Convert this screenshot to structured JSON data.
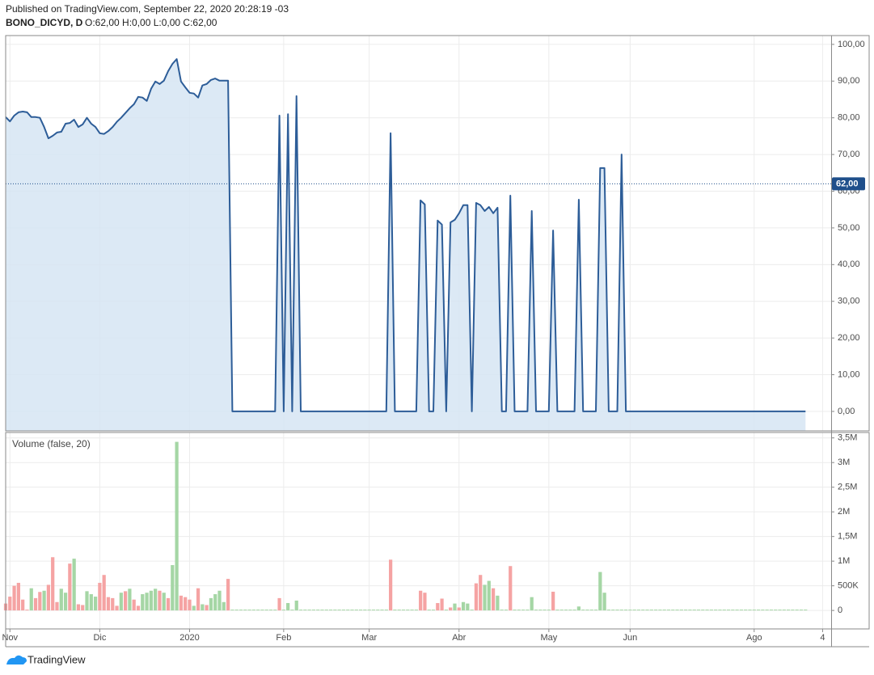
{
  "header": {
    "published": "Published on TradingView.com, September 22, 2020 20:28:19 -03",
    "symbol": "BONO_DICYD, D",
    "ohlc": "O:62,00 H:0,00 L:0,00 C:62,00"
  },
  "chart_data": [
    {
      "type": "area",
      "color": "#2d5d98",
      "fill_color": "#d6e5f3",
      "values": [
        80.2,
        79,
        80.6,
        81.5,
        81.7,
        81.5,
        80.2,
        80.2,
        80,
        77.5,
        74.4,
        75.1,
        76,
        76.2,
        78.4,
        78.6,
        79.5,
        77.5,
        78.2,
        80,
        78.4,
        77.5,
        75.8,
        75.6,
        76.4,
        77.5,
        78.9,
        80,
        81.3,
        82.6,
        83.7,
        85.7,
        85.5,
        84.6,
        87.9,
        89.9,
        89.2,
        90.1,
        92.7,
        94.7,
        96,
        89.9,
        88.3,
        86.8,
        86.6,
        85.5,
        88.8,
        89.2,
        90.3,
        90.7,
        90.1,
        90.1,
        90.1,
        0,
        0,
        0,
        0,
        0,
        0,
        0,
        0,
        0,
        0,
        0,
        80.6,
        0,
        81,
        0,
        85.9,
        0,
        0,
        0,
        0,
        0,
        0,
        0,
        0,
        0,
        0,
        0,
        0,
        0,
        0,
        0,
        0,
        0,
        0,
        0,
        0,
        0,
        75.8,
        0,
        0,
        0,
        0,
        0,
        0,
        57.5,
        56.4,
        0,
        0,
        52,
        50.9,
        0,
        51.5,
        52.2,
        54,
        56.2,
        56.2,
        0,
        56.8,
        56.2,
        54.6,
        55.7,
        54,
        55.5,
        0,
        0,
        58.8,
        0,
        0,
        0,
        0,
        54.6,
        0,
        0,
        0,
        0,
        49.3,
        0,
        0,
        0,
        0,
        0,
        57.7,
        0,
        0,
        0,
        0,
        66.3,
        66.3,
        0,
        0,
        0,
        70,
        0,
        0,
        0,
        0,
        0,
        0,
        0,
        0,
        0,
        0,
        0,
        0,
        0,
        0,
        0,
        0,
        0,
        0,
        0,
        0,
        0,
        0,
        0,
        0,
        0,
        0,
        0,
        0,
        0,
        0,
        0,
        0,
        0,
        0,
        0,
        0,
        0,
        0,
        0,
        0,
        0,
        0,
        0
      ],
      "ylim": [
        -5.3,
        102.4
      ],
      "yticks": [
        {
          "value": 0,
          "label": "0,00"
        },
        {
          "value": 10,
          "label": "10,00"
        },
        {
          "value": 20,
          "label": "20,00"
        },
        {
          "value": 30,
          "label": "30,00"
        },
        {
          "value": 40,
          "label": "40,00"
        },
        {
          "value": 50,
          "label": "50,00"
        },
        {
          "value": 60,
          "label": "60,00"
        },
        {
          "value": 70,
          "label": "70,00"
        },
        {
          "value": 80,
          "label": "80,00"
        },
        {
          "value": 90,
          "label": "90,00"
        },
        {
          "value": 100,
          "label": "100,00"
        }
      ],
      "last_price": {
        "value": 62,
        "label": "62,00"
      },
      "last_color": "#1f4f8b",
      "grid": true
    },
    {
      "type": "bar",
      "title": "Volume (false, 20)",
      "values": [
        140000,
        280000,
        500000,
        560000,
        220000,
        16000,
        450000,
        250000,
        375000,
        400000,
        520000,
        1080000,
        170000,
        440000,
        360000,
        950000,
        1050000,
        125000,
        110000,
        390000,
        330000,
        280000,
        560000,
        720000,
        270000,
        250000,
        94000,
        360000,
        390000,
        440000,
        220000,
        94000,
        330000,
        360000,
        400000,
        440000,
        400000,
        360000,
        250000,
        920000,
        3420000,
        300000,
        270000,
        220000,
        94000,
        450000,
        125000,
        110000,
        250000,
        330000,
        400000,
        170000,
        640000,
        0,
        0,
        0,
        0,
        0,
        0,
        0,
        0,
        0,
        0,
        0,
        250000,
        0,
        150000,
        0,
        200000,
        0,
        0,
        0,
        0,
        0,
        0,
        0,
        0,
        0,
        0,
        0,
        0,
        0,
        0,
        0,
        0,
        0,
        0,
        0,
        0,
        0,
        1030000,
        0,
        0,
        0,
        0,
        0,
        0,
        400000,
        360000,
        0,
        0,
        150000,
        240000,
        0,
        60000,
        140000,
        60000,
        170000,
        140000,
        0,
        550000,
        720000,
        520000,
        600000,
        450000,
        300000,
        0,
        0,
        900000,
        0,
        0,
        0,
        0,
        270000,
        0,
        0,
        0,
        0,
        380000,
        0,
        0,
        0,
        0,
        0,
        80000,
        0,
        0,
        0,
        0,
        780000,
        360000,
        0,
        0,
        0,
        0,
        0,
        0,
        0,
        0,
        0,
        0,
        0,
        0,
        0,
        0,
        0,
        0,
        0,
        0,
        0,
        0,
        0,
        0,
        0,
        0,
        0,
        0,
        0,
        0,
        0,
        0,
        0,
        0,
        0,
        0,
        0,
        0,
        0,
        0,
        0,
        0,
        0,
        0,
        0,
        0,
        0,
        0,
        0
      ],
      "colors": [
        "#f5a3a3",
        "#f5a3a3",
        "#f5a3a3",
        "#f5a3a3",
        "#f5a3a3",
        "#f5a3a3",
        "#a5d6a5",
        "#f5a3a3",
        "#f5a3a3",
        "#a5d6a5",
        "#f5a3a3",
        "#f5a3a3",
        "#f5a3a3",
        "#a5d6a5",
        "#a5d6a5",
        "#f5a3a3",
        "#a5d6a5",
        "#f5a3a3",
        "#f5a3a3",
        "#a5d6a5",
        "#a5d6a5",
        "#a5d6a5",
        "#f5a3a3",
        "#f5a3a3",
        "#f5a3a3",
        "#f5a3a3",
        "#f5a3a3",
        "#a5d6a5",
        "#f5a3a3",
        "#a5d6a5",
        "#f5a3a3",
        "#f5a3a3",
        "#a5d6a5",
        "#a5d6a5",
        "#a5d6a5",
        "#a5d6a5",
        "#f5a3a3",
        "#a5d6a5",
        "#f5a3a3",
        "#a5d6a5",
        "#a5d6a5",
        "#f5a3a3",
        "#f5a3a3",
        "#f5a3a3",
        "#a5d6a5",
        "#f5a3a3",
        "#a5d6a5",
        "#f5a3a3",
        "#a5d6a5",
        "#a5d6a5",
        "#a5d6a5",
        "#a5d6a5",
        "#f5a3a3",
        "#a5d6a5",
        "#a5d6a5",
        "#a5d6a5",
        "#a5d6a5",
        "#a5d6a5",
        "#a5d6a5",
        "#a5d6a5",
        "#a5d6a5",
        "#a5d6a5",
        "#a5d6a5",
        "#a5d6a5",
        "#f5a3a3",
        "#a5d6a5",
        "#a5d6a5",
        "#a5d6a5",
        "#a5d6a5",
        "#a5d6a5",
        "#a5d6a5",
        "#a5d6a5",
        "#a5d6a5",
        "#a5d6a5",
        "#a5d6a5",
        "#a5d6a5",
        "#a5d6a5",
        "#a5d6a5",
        "#a5d6a5",
        "#a5d6a5",
        "#a5d6a5",
        "#a5d6a5",
        "#a5d6a5",
        "#a5d6a5",
        "#a5d6a5",
        "#a5d6a5",
        "#a5d6a5",
        "#a5d6a5",
        "#a5d6a5",
        "#a5d6a5",
        "#f5a3a3",
        "#a5d6a5",
        "#a5d6a5",
        "#a5d6a5",
        "#a5d6a5",
        "#a5d6a5",
        "#a5d6a5",
        "#f5a3a3",
        "#f5a3a3",
        "#a5d6a5",
        "#a5d6a5",
        "#f5a3a3",
        "#f5a3a3",
        "#a5d6a5",
        "#f5a3a3",
        "#a5d6a5",
        "#f5a3a3",
        "#a5d6a5",
        "#a5d6a5",
        "#a5d6a5",
        "#f5a3a3",
        "#f5a3a3",
        "#a5d6a5",
        "#a5d6a5",
        "#f5a3a3",
        "#a5d6a5",
        "#a5d6a5",
        "#a5d6a5",
        "#f5a3a3",
        "#a5d6a5",
        "#a5d6a5",
        "#a5d6a5",
        "#a5d6a5",
        "#a5d6a5",
        "#a5d6a5",
        "#a5d6a5",
        "#a5d6a5",
        "#a5d6a5",
        "#f5a3a3",
        "#a5d6a5",
        "#a5d6a5",
        "#a5d6a5",
        "#a5d6a5",
        "#a5d6a5",
        "#a5d6a5",
        "#a5d6a5",
        "#a5d6a5",
        "#a5d6a5",
        "#a5d6a5",
        "#a5d6a5",
        "#a5d6a5",
        "#a5d6a5",
        "#a5d6a5",
        "#a5d6a5",
        "#a5d6a5",
        "#a5d6a5",
        "#a5d6a5",
        "#a5d6a5",
        "#a5d6a5",
        "#a5d6a5",
        "#a5d6a5",
        "#a5d6a5",
        "#a5d6a5",
        "#a5d6a5",
        "#a5d6a5",
        "#a5d6a5",
        "#a5d6a5",
        "#a5d6a5",
        "#a5d6a5",
        "#a5d6a5",
        "#a5d6a5",
        "#a5d6a5",
        "#a5d6a5",
        "#a5d6a5",
        "#a5d6a5",
        "#a5d6a5",
        "#a5d6a5",
        "#a5d6a5",
        "#a5d6a5",
        "#a5d6a5",
        "#a5d6a5",
        "#a5d6a5",
        "#a5d6a5",
        "#a5d6a5",
        "#a5d6a5",
        "#a5d6a5",
        "#a5d6a5",
        "#a5d6a5",
        "#a5d6a5",
        "#a5d6a5",
        "#a5d6a5",
        "#a5d6a5",
        "#a5d6a5",
        "#a5d6a5",
        "#a5d6a5",
        "#a5d6a5",
        "#a5d6a5",
        "#a5d6a5"
      ],
      "ylim": [
        -375000,
        3610000
      ],
      "yticks": [
        0,
        {
          "value": 500000,
          "label": "500K"
        },
        {
          "value": 1000000,
          "label": "1M"
        },
        {
          "value": 1500000,
          "label": "1,5M"
        },
        {
          "value": 2000000,
          "label": "2M"
        },
        {
          "value": 2500000,
          "label": "2,5M"
        },
        {
          "value": 3000000,
          "label": "3M"
        },
        {
          "value": 3500000,
          "label": "3,5M"
        }
      ],
      "xlim": [
        0,
        193
      ],
      "xticks": [
        {
          "value": 1,
          "label": "Nov"
        },
        {
          "value": 22,
          "label": "Dic"
        },
        {
          "value": 43,
          "label": "2020"
        },
        {
          "value": 65,
          "label": "Feb"
        },
        {
          "value": 85,
          "label": "Mar"
        },
        {
          "value": 106,
          "label": "Abr"
        },
        {
          "value": 127,
          "label": "May"
        },
        {
          "value": 146,
          "label": "Jun"
        },
        {
          "value": 175,
          "label": "Ago"
        },
        {
          "value": 191,
          "label": "4"
        }
      ],
      "grid": true
    }
  ],
  "footer": {
    "brand": "TradingView"
  }
}
